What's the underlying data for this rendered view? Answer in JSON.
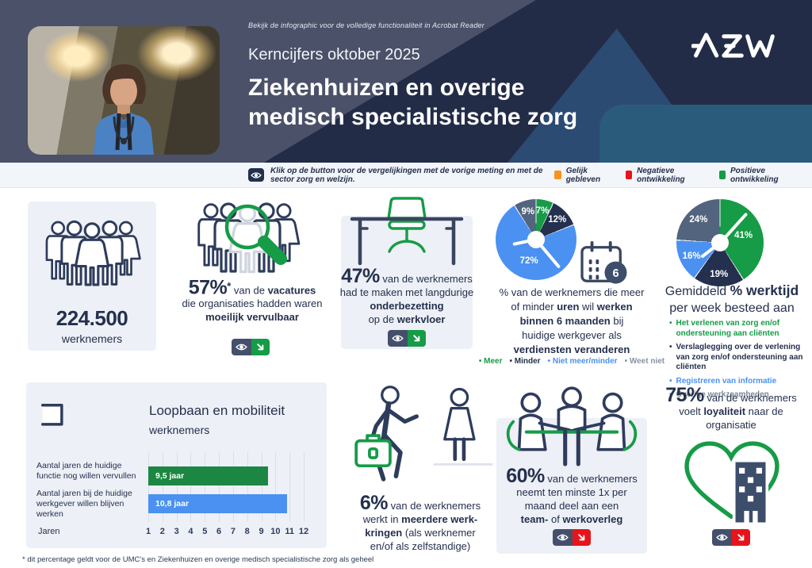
{
  "header": {
    "acrobat_note": "Bekijk de infographic voor de volledige functionaliteit in Acrobat Reader",
    "kicker": "Kerncijfers oktober 2025",
    "title_line1": "Ziekenhuizen en overige",
    "title_line2": "medisch specialistische zorg",
    "logo": "AZW"
  },
  "legend_bar": {
    "instruction": "Klik op de button voor de vergelijkingen met de vorige meting en met de sector zorg en welzijn.",
    "items": [
      {
        "label": "Gelijk gebleven",
        "color": "#F7941E"
      },
      {
        "label": "Negatieve ontwikkeling",
        "color": "#E8141C"
      },
      {
        "label": "Positieve ontwikkeling",
        "color": "#169B47"
      }
    ]
  },
  "blocks": {
    "workforce": {
      "value": "224.500",
      "label": "werknemers"
    },
    "vacancies": {
      "rich": [
        {
          "t": "57%",
          "c": "pct"
        },
        {
          "t": "*",
          "c": "sup"
        },
        {
          "t": " van de "
        },
        {
          "t": "vacatures",
          "c": "b"
        },
        {
          "nl": true
        },
        {
          "t": "die organisaties hadden waren"
        },
        {
          "nl": true
        },
        {
          "t": "moeilijk vervulbaar",
          "c": "b"
        }
      ]
    },
    "understaffing": {
      "rich": [
        {
          "t": "47%",
          "c": "pct"
        },
        {
          "t": " van de werknemers"
        },
        {
          "nl": true
        },
        {
          "t": "had te maken met langdurige"
        },
        {
          "nl": true
        },
        {
          "t": "onderbezetting",
          "c": "b"
        },
        {
          "nl": true
        },
        {
          "t": "op de "
        },
        {
          "t": "werkvloer",
          "c": "b"
        }
      ]
    },
    "hours_pie": {
      "badge": "6",
      "caption_rich": [
        {
          "t": "% van de werknemers die meer"
        },
        {
          "nl": true
        },
        {
          "t": "of minder "
        },
        {
          "t": "uren",
          "c": "b"
        },
        {
          "t": " wil "
        },
        {
          "t": "werken",
          "c": "b"
        },
        {
          "nl": true
        },
        {
          "t": "binnen 6 maanden",
          "c": "b"
        },
        {
          "t": " bij"
        },
        {
          "nl": true
        },
        {
          "t": "huidige werkgever als"
        },
        {
          "nl": true
        },
        {
          "t": "verdiensten veranderen",
          "c": "b"
        }
      ]
    },
    "worktime_pie": {
      "title_rich": [
        {
          "t": "Gemiddeld "
        },
        {
          "t": "% werktijd",
          "c": "b"
        },
        {
          "nl": true
        },
        {
          "t": "per week besteed aan"
        }
      ]
    },
    "career": {
      "title_rich": [
        {
          "t": "Loopbaan",
          "c": "b"
        },
        {
          "t": " en "
        },
        {
          "t": "mobiliteit",
          "c": "b"
        }
      ],
      "subtitle": "werknemers"
    },
    "multiple_jobs": {
      "rich": [
        {
          "t": "6%",
          "c": "pct"
        },
        {
          "t": " van de werknemers"
        },
        {
          "nl": true
        },
        {
          "t": "werkt in "
        },
        {
          "t": "meerdere werk-",
          "c": "b"
        },
        {
          "nl": true
        },
        {
          "t": "kringen",
          "c": "b"
        },
        {
          "t": " (als werknemer"
        },
        {
          "nl": true
        },
        {
          "t": "en/of als zelfstandige)"
        }
      ]
    },
    "meetings": {
      "rich": [
        {
          "t": "60%",
          "c": "pct"
        },
        {
          "t": " van de werknemers"
        },
        {
          "nl": true
        },
        {
          "t": "neemt ten minste 1x per"
        },
        {
          "nl": true
        },
        {
          "t": "maand deel aan een"
        },
        {
          "nl": true
        },
        {
          "t": "team-",
          "c": "b"
        },
        {
          "t": " of "
        },
        {
          "t": "werkoverleg",
          "c": "b"
        }
      ]
    },
    "loyalty": {
      "rich": [
        {
          "t": "75%",
          "c": "pct"
        },
        {
          "t": " van de werknemers"
        },
        {
          "nl": true
        },
        {
          "t": "voelt "
        },
        {
          "t": "loyaliteit",
          "c": "b"
        },
        {
          "t": " naar de"
        },
        {
          "nl": true
        },
        {
          "t": "organisatie"
        }
      ]
    }
  },
  "chart_data": [
    {
      "type": "pie",
      "title": "% van de werknemers die meer of minder uren wil werken binnen 6 maanden bij huidige werkgever als verdiensten veranderen",
      "legend_position": "bottom",
      "slices": [
        {
          "label": "Meer",
          "value": 7,
          "color": "#169B47"
        },
        {
          "label": "Minder",
          "value": 12,
          "color": "#24304E"
        },
        {
          "label": "Niet meer/minder",
          "value": 72,
          "color": "#4A91F2"
        },
        {
          "label": "Weet niet",
          "value": 9,
          "color": "#53647E"
        }
      ]
    },
    {
      "type": "pie",
      "title": "Gemiddeld % werktijd per week besteed aan",
      "legend_position": "bottom",
      "slices": [
        {
          "label": "Het verlenen van zorg en/of ondersteuning aan cliënten",
          "value": 41,
          "color": "#169B47"
        },
        {
          "label": "Verslaglegging over de verlening van zorg en/of ondersteuning aan cliënten",
          "value": 19,
          "color": "#24304E"
        },
        {
          "label": "Registreren van informatie",
          "value": 16,
          "color": "#4A91F2"
        },
        {
          "label": "Overige werkzaamheden",
          "value": 24,
          "color": "#53647E"
        }
      ]
    },
    {
      "type": "bar",
      "orientation": "horizontal",
      "title": "Loopbaan en mobiliteit werknemers",
      "categories": [
        "Aantal jaren de huidige functie nog willen vervullen",
        "Aantal jaren bij de huidige werkgever willen blijven werken"
      ],
      "values": [
        9.5,
        10.8
      ],
      "bar_labels": [
        "9,5 jaar",
        "10,8 jaar"
      ],
      "colors": [
        "#1C8742",
        "#4A91F2"
      ],
      "xlabel": "Jaren",
      "xlim": [
        1,
        12
      ],
      "ticks": [
        1,
        2,
        3,
        4,
        5,
        6,
        7,
        8,
        9,
        10,
        11,
        12
      ],
      "grid": true
    }
  ],
  "footnote": "* dit percentage geldt voor de UMC's en Ziekenhuizen en overige medisch specialistische zorg als geheel",
  "colors": {
    "green": "#169B47",
    "green_dark": "#1C8742",
    "blue": "#4A91F2",
    "navy": "#24304E",
    "slate": "#53647E",
    "orange": "#F7941E",
    "red": "#E8141C",
    "header_bg": "#222C47",
    "card_bg": "#EDF0F6"
  }
}
